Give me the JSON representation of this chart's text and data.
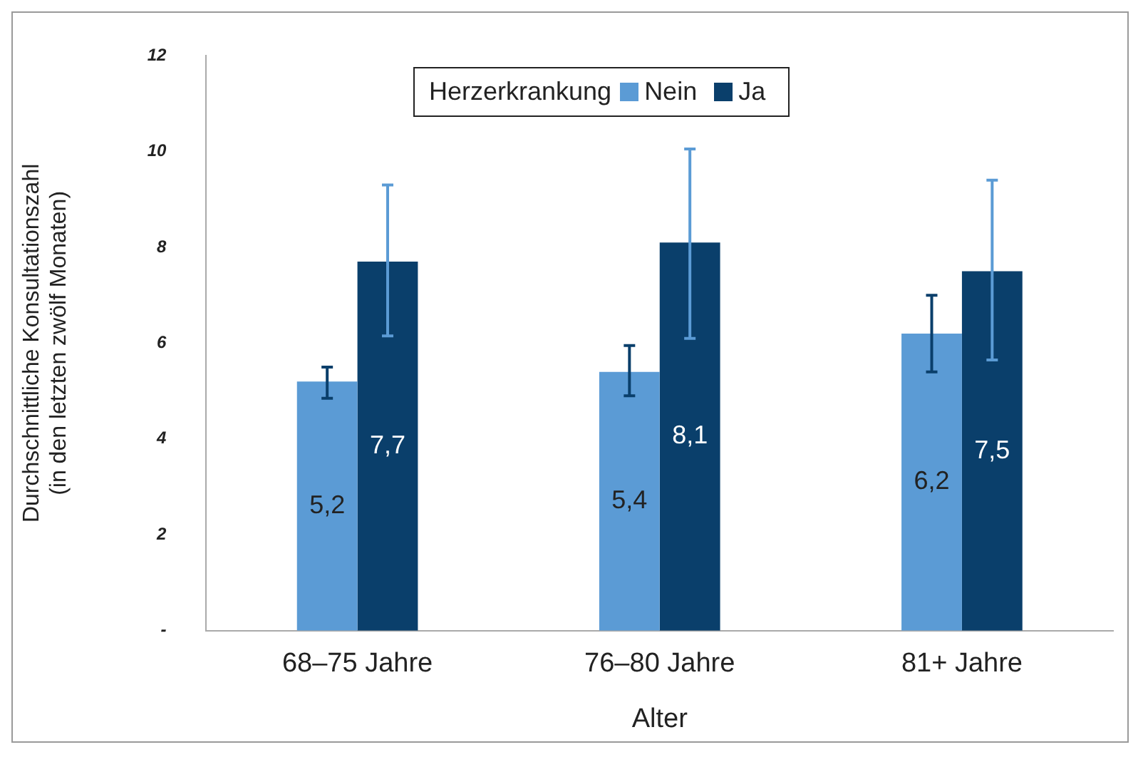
{
  "chart_data": {
    "type": "bar",
    "xlabel": "Alter",
    "ylabel": "Durchschnittliche Konsultationszahl\n(in den letzten zwölf Monaten)",
    "legend_title": "Herzerkrankung",
    "categories": [
      "68–75 Jahre",
      "76–80 Jahre",
      "81+ Jahre"
    ],
    "series": [
      {
        "name": "Nein",
        "color": "#5b9bd5",
        "values": [
          5.2,
          5.4,
          6.2
        ],
        "value_labels": [
          "5,2",
          "5,4",
          "6,2"
        ],
        "errors": [
          [
            4.85,
            5.5
          ],
          [
            4.9,
            5.95
          ],
          [
            5.4,
            7.0
          ]
        ]
      },
      {
        "name": "Ja",
        "color": "#0a3f6b",
        "values": [
          7.7,
          8.1,
          7.5
        ],
        "value_labels": [
          "7,7",
          "8,1",
          "7,5"
        ],
        "errors": [
          [
            6.15,
            9.3
          ],
          [
            6.1,
            10.05
          ],
          [
            5.65,
            9.4
          ]
        ]
      }
    ],
    "ylim": [
      0,
      12
    ],
    "yticks": [
      {
        "value": 0,
        "label": "-"
      },
      2,
      4,
      6,
      8,
      10,
      12
    ],
    "grid": false,
    "legend": "top"
  }
}
